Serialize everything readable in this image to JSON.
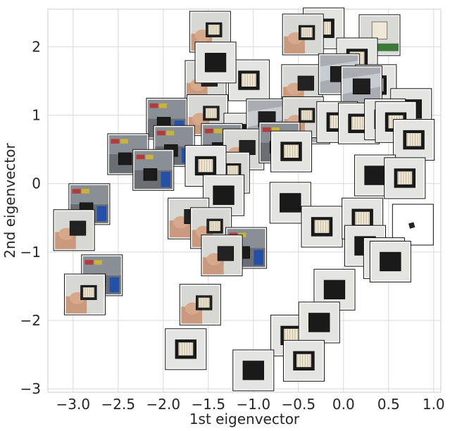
{
  "chart_data": {
    "type": "scatter",
    "marker": "image-thumbnail",
    "title": "",
    "xlabel": "1st eigenvector",
    "ylabel": "2nd eigenvector",
    "xlim": [
      -3.28,
      1.08
    ],
    "ylim": [
      -3.05,
      2.55
    ],
    "xticks": [
      -3.0,
      -2.5,
      -2.0,
      -1.5,
      -1.0,
      -0.5,
      0.0,
      0.5,
      1.0
    ],
    "xtick_labels": [
      "−3.0",
      "−2.5",
      "−2.0",
      "−1.5",
      "−1.0",
      "−0.5",
      "0.0",
      "0.5",
      "1.0"
    ],
    "yticks": [
      -3,
      -2,
      -1,
      0,
      1,
      2
    ],
    "ytick_labels": [
      "−3",
      "−2",
      "−1",
      "0",
      "1",
      "2"
    ],
    "grid": true,
    "points": [
      {
        "x": -1.48,
        "y": 2.22,
        "theme": "hand"
      },
      {
        "x": -0.22,
        "y": 2.27,
        "theme": "box"
      },
      {
        "x": -0.45,
        "y": 2.18,
        "theme": "hand"
      },
      {
        "x": 0.4,
        "y": 2.17,
        "theme": "shelf"
      },
      {
        "x": -1.05,
        "y": 1.51,
        "theme": "box"
      },
      {
        "x": -1.53,
        "y": 1.5,
        "theme": "hand"
      },
      {
        "x": -1.42,
        "y": 1.77,
        "theme": "box"
      },
      {
        "x": -0.46,
        "y": 1.44,
        "theme": "hand"
      },
      {
        "x": 0.15,
        "y": 1.83,
        "theme": "box"
      },
      {
        "x": -0.05,
        "y": 1.6,
        "theme": "metal"
      },
      {
        "x": 0.36,
        "y": 1.44,
        "theme": "box"
      },
      {
        "x": 0.2,
        "y": 1.42,
        "theme": "metal"
      },
      {
        "x": 0.75,
        "y": 1.09,
        "theme": "box"
      },
      {
        "x": -1.96,
        "y": 0.95,
        "theme": "room"
      },
      {
        "x": -1.51,
        "y": 1.0,
        "theme": "hand"
      },
      {
        "x": -1.1,
        "y": 0.73,
        "theme": "box"
      },
      {
        "x": -0.85,
        "y": 0.94,
        "theme": "metal"
      },
      {
        "x": -0.38,
        "y": 0.88,
        "theme": "metal"
      },
      {
        "x": -0.45,
        "y": 0.97,
        "theme": "hand"
      },
      {
        "x": -0.07,
        "y": 0.9,
        "theme": "box"
      },
      {
        "x": 0.17,
        "y": 0.88,
        "theme": "box"
      },
      {
        "x": 0.46,
        "y": 0.94,
        "theme": "box"
      },
      {
        "x": 0.58,
        "y": 0.9,
        "theme": "box"
      },
      {
        "x": 0.78,
        "y": 0.64,
        "theme": "box"
      },
      {
        "x": -2.39,
        "y": 0.43,
        "theme": "room"
      },
      {
        "x": -1.88,
        "y": 0.55,
        "theme": "room"
      },
      {
        "x": -1.35,
        "y": 0.58,
        "theme": "room"
      },
      {
        "x": -1.11,
        "y": 0.5,
        "theme": "hand"
      },
      {
        "x": -0.71,
        "y": 0.6,
        "theme": "room"
      },
      {
        "x": -0.58,
        "y": 0.47,
        "theme": "box"
      },
      {
        "x": -1.27,
        "y": 0.16,
        "theme": "hand"
      },
      {
        "x": -1.53,
        "y": 0.26,
        "theme": "box"
      },
      {
        "x": -2.11,
        "y": 0.2,
        "theme": "room"
      },
      {
        "x": 0.35,
        "y": 0.12,
        "theme": "box"
      },
      {
        "x": 0.68,
        "y": 0.08,
        "theme": "box"
      },
      {
        "x": -2.82,
        "y": -0.3,
        "theme": "room"
      },
      {
        "x": -1.33,
        "y": -0.17,
        "theme": "box"
      },
      {
        "x": -1.72,
        "y": -0.51,
        "theme": "hand"
      },
      {
        "x": -1.47,
        "y": -0.65,
        "theme": "hand"
      },
      {
        "x": -2.99,
        "y": -0.68,
        "theme": "hand"
      },
      {
        "x": -1.08,
        "y": -0.94,
        "theme": "room"
      },
      {
        "x": -1.35,
        "y": -1.05,
        "theme": "hand"
      },
      {
        "x": -0.59,
        "y": -0.28,
        "theme": "box"
      },
      {
        "x": -0.24,
        "y": -0.63,
        "theme": "box"
      },
      {
        "x": 0.21,
        "y": -0.51,
        "theme": "box"
      },
      {
        "x": 0.24,
        "y": -0.91,
        "theme": "box"
      },
      {
        "x": 0.77,
        "y": -0.6,
        "theme": "white"
      },
      {
        "x": 0.45,
        "y": -1.09,
        "theme": "box"
      },
      {
        "x": 0.52,
        "y": -1.14,
        "theme": "box"
      },
      {
        "x": -2.68,
        "y": -1.34,
        "theme": "room"
      },
      {
        "x": -2.87,
        "y": -1.62,
        "theme": "hand"
      },
      {
        "x": -0.1,
        "y": -1.55,
        "theme": "box"
      },
      {
        "x": -1.59,
        "y": -1.77,
        "theme": "hand"
      },
      {
        "x": -0.58,
        "y": -2.22,
        "theme": "box"
      },
      {
        "x": -0.27,
        "y": -2.03,
        "theme": "box"
      },
      {
        "x": -0.44,
        "y": -2.59,
        "theme": "box"
      },
      {
        "x": -1.75,
        "y": -2.42,
        "theme": "box"
      },
      {
        "x": -1.0,
        "y": -2.73,
        "theme": "box"
      }
    ]
  },
  "colors": {
    "background": "#ffffff",
    "grid": "#d9d9d9",
    "frame": "#cccccc",
    "text": "#262626",
    "thumb_border": "#111111"
  }
}
